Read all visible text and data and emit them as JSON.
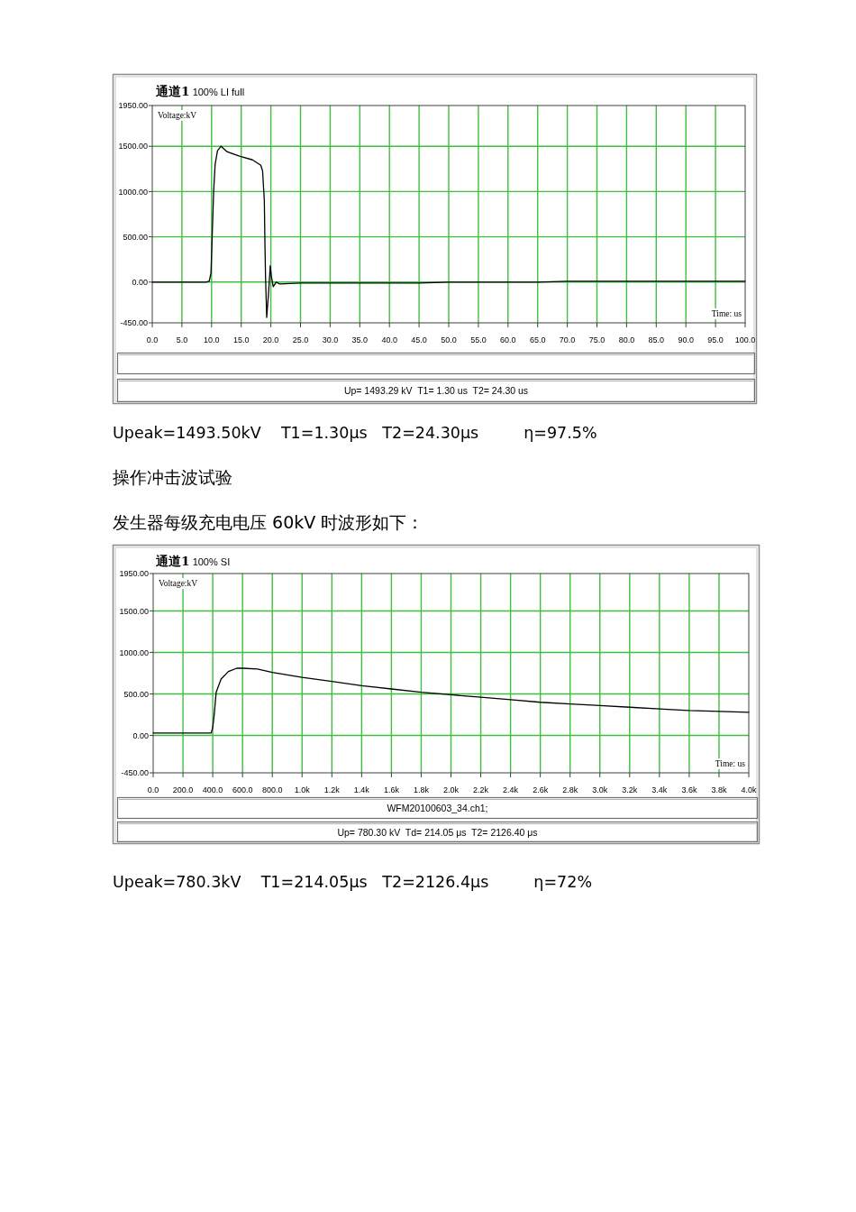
{
  "chart_data": [
    {
      "type": "line",
      "title": "**通道1** 100% LI full",
      "xlabel": "Time: us",
      "ylabel": "Voltage:kV",
      "x": [
        0,
        5,
        9,
        9.6,
        9.9,
        10.1,
        10.35,
        10.6,
        11,
        11.6,
        12.6,
        14.7,
        16.9,
        18.3,
        18.6,
        18.9,
        19,
        19.1,
        19.3,
        19.6,
        19.9,
        20.1,
        20.4,
        20.9,
        21.5,
        25,
        30,
        35,
        40,
        45,
        50,
        55,
        60,
        65,
        70,
        75,
        80,
        85,
        90,
        95,
        100
      ],
      "series": [
        {
          "color": "#000000",
          "values": [
            0,
            0,
            0,
            10,
            100,
            500,
            1000,
            1300,
            1450,
            1500,
            1440,
            1390,
            1350,
            1290,
            1230,
            900,
            430,
            60,
            -390,
            -130,
            180,
            60,
            -50,
            0,
            -20,
            -10,
            -10,
            -10,
            -10,
            -10,
            0,
            0,
            0,
            0,
            10,
            10,
            10,
            10,
            10,
            10,
            10
          ]
        }
      ],
      "xlim": [
        0,
        100
      ],
      "ylim": [
        -450,
        1950
      ],
      "xticks": [
        {
          "value": 0,
          "label": "0.0"
        },
        {
          "value": 5,
          "label": "5.0"
        },
        {
          "value": 10,
          "label": "10.0"
        },
        {
          "value": 15,
          "label": "15.0"
        },
        {
          "value": 20,
          "label": "20.0"
        },
        {
          "value": 25,
          "label": "25.0"
        },
        {
          "value": 30,
          "label": "30.0"
        },
        {
          "value": 35,
          "label": "35.0"
        },
        {
          "value": 40,
          "label": "40.0"
        },
        {
          "value": 45,
          "label": "45.0"
        },
        {
          "value": 50,
          "label": "50.0"
        },
        {
          "value": 55,
          "label": "55.0"
        },
        {
          "value": 60,
          "label": "60.0"
        },
        {
          "value": 65,
          "label": "65.0"
        },
        {
          "value": 70,
          "label": "70.0"
        },
        {
          "value": 75,
          "label": "75.0"
        },
        {
          "value": 80,
          "label": "80.0"
        },
        {
          "value": 85,
          "label": "85.0"
        },
        {
          "value": 90,
          "label": "90.0"
        },
        {
          "value": 95,
          "label": "95.0"
        },
        {
          "value": 100,
          "label": "100.0"
        }
      ],
      "yticks": [
        {
          "value": 1950,
          "label": "1950.00"
        },
        {
          "value": 1500,
          "label": "1500.00"
        },
        {
          "value": 1000,
          "label": "1000.00"
        },
        {
          "value": 500,
          "label": "500.00"
        },
        {
          "value": 0,
          "label": "0.00"
        },
        {
          "value": -450,
          "label": "-450.00"
        }
      ],
      "grid": true,
      "annotations": [
        "Up= 1493.29 kV  T1= 1.30 us  T2= 24.30 us",
        "Upeak=1493.50kV    T1=1.30μs   T2=24.30μs         η=97.5%"
      ]
    },
    {
      "type": "line",
      "title": "**通道1** 100% SI",
      "xlabel": "Time: us",
      "ylabel": "Voltage:kV",
      "x": [
        0,
        100,
        200,
        300,
        390,
        400,
        410,
        423,
        456,
        505,
        561,
        600,
        700,
        800,
        1000,
        1200,
        1400,
        1600,
        1800,
        2000,
        2200,
        2400,
        2600,
        2800,
        3000,
        3200,
        3400,
        3600,
        3800,
        4000
      ],
      "series": [
        {
          "color": "#000000",
          "values": [
            30,
            30,
            30,
            30,
            30,
            100,
            250,
            520,
            680,
            770,
            810,
            810,
            800,
            760,
            700,
            650,
            600,
            560,
            520,
            490,
            460,
            430,
            400,
            380,
            360,
            340,
            320,
            300,
            290,
            280
          ]
        }
      ],
      "xlim": [
        0,
        4000
      ],
      "ylim": [
        -450,
        1950
      ],
      "xticks": [
        {
          "value": 0,
          "label": "0.0"
        },
        {
          "value": 200,
          "label": "200.0"
        },
        {
          "value": 400,
          "label": "400.0"
        },
        {
          "value": 600,
          "label": "600.0"
        },
        {
          "value": 800,
          "label": "800.0"
        },
        {
          "value": 1000,
          "label": "1.0k"
        },
        {
          "value": 1200,
          "label": "1.2k"
        },
        {
          "value": 1400,
          "label": "1.4k"
        },
        {
          "value": 1600,
          "label": "1.6k"
        },
        {
          "value": 1800,
          "label": "1.8k"
        },
        {
          "value": 2000,
          "label": "2.0k"
        },
        {
          "value": 2200,
          "label": "2.2k"
        },
        {
          "value": 2400,
          "label": "2.4k"
        },
        {
          "value": 2600,
          "label": "2.6k"
        },
        {
          "value": 2800,
          "label": "2.8k"
        },
        {
          "value": 3000,
          "label": "3.0k"
        },
        {
          "value": 3200,
          "label": "3.2k"
        },
        {
          "value": 3400,
          "label": "3.4k"
        },
        {
          "value": 3600,
          "label": "3.6k"
        },
        {
          "value": 3800,
          "label": "3.8k"
        },
        {
          "value": 4000,
          "label": "4.0k"
        }
      ],
      "yticks": [
        {
          "value": 1950,
          "label": "1950.00"
        },
        {
          "value": 1500,
          "label": "1500.00"
        },
        {
          "value": 1000,
          "label": "1000.00"
        },
        {
          "value": 500,
          "label": "500.00"
        },
        {
          "value": 0,
          "label": "0.00"
        },
        {
          "value": -450,
          "label": "-450.00"
        }
      ],
      "grid": true,
      "annotations": [
        "操作冲击波试验",
        "发生器每级充电电压 60kV 时波形如下：",
        "WFM20100603_34.ch1;",
        "Up= 780.30 kV  Td= 214.05 μs  T2= 2126.40 μs",
        "Upeak=780.3kV    T1=214.05μs   T2=2126.4μs         η=72%"
      ]
    }
  ]
}
